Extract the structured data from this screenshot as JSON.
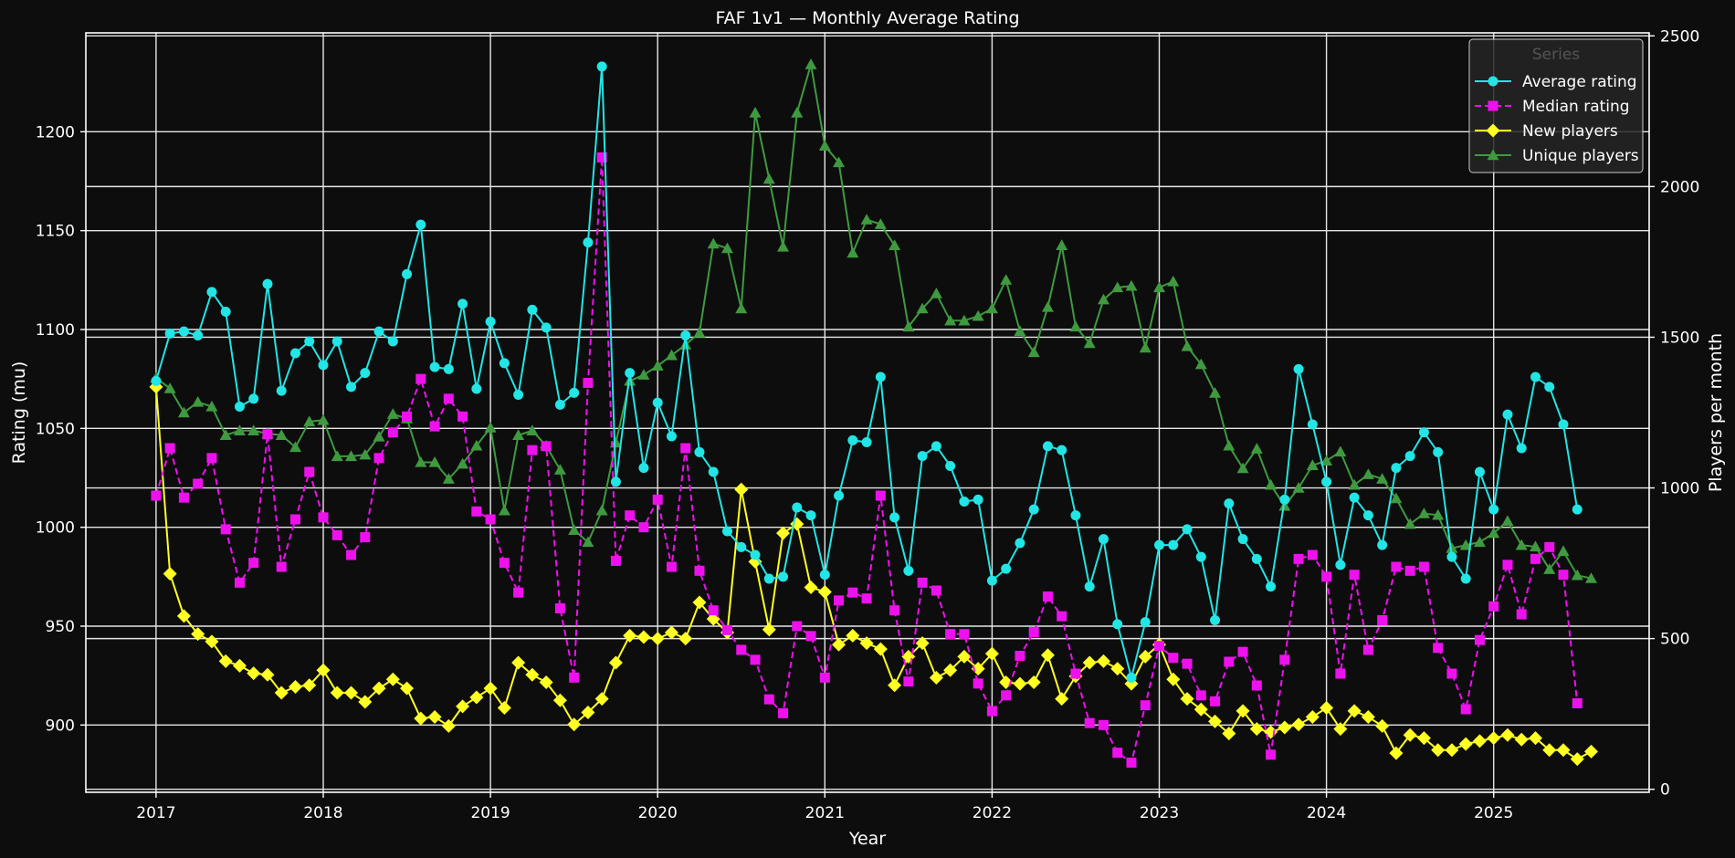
{
  "chart_data": {
    "type": "line",
    "title": "FAF 1v1 — Monthly Average Rating",
    "xlabel": "Year",
    "ylabel": "Rating (mu)",
    "y2label": "Players per month",
    "xlim": [
      2016.58,
      2025.93
    ],
    "ylim": [
      866,
      1250
    ],
    "y2lim": [
      -10,
      2510
    ],
    "x_ticks": [
      2017,
      2018,
      2019,
      2020,
      2021,
      2022,
      2023,
      2024,
      2025
    ],
    "y_ticks": [
      900,
      950,
      1000,
      1050,
      1100,
      1150,
      1200
    ],
    "y2_ticks": [
      0,
      500,
      1000,
      1500,
      2000,
      2500
    ],
    "grid": true,
    "legend": {
      "title": "Series",
      "placement": "top-right"
    },
    "x_start": "2017-01",
    "series": [
      {
        "name": "Average rating",
        "axis": "left",
        "color": "#22e5e5",
        "marker": "circle",
        "dash": "solid",
        "values": [
          1074,
          1098,
          1099,
          1097,
          1119,
          1109,
          1061,
          1065,
          1123,
          1069,
          1088,
          1094,
          1082,
          1094,
          1071,
          1078,
          1099,
          1094,
          1128,
          1153,
          1081,
          1080,
          1113,
          1070,
          1104,
          1083,
          1067,
          1110,
          1101,
          1062,
          1068,
          1144,
          1233,
          1023,
          1078,
          1030,
          1063,
          1046,
          1097,
          1038,
          1028,
          998,
          990,
          986,
          974,
          975,
          1010,
          1006,
          976,
          1016,
          1044,
          1043,
          1076,
          1005,
          978,
          1036,
          1041,
          1031,
          1013,
          1014,
          973,
          979,
          992,
          1009,
          1041,
          1039,
          1006,
          970,
          994,
          951,
          924,
          952,
          991,
          991,
          999,
          985,
          953,
          1012,
          994,
          984,
          970,
          1014,
          1080,
          1052,
          1023,
          981,
          1015,
          1006,
          991,
          1030,
          1036,
          1048,
          1038,
          985,
          974,
          1028,
          1009,
          1057,
          1040,
          1076,
          1071,
          1052,
          1009
        ]
      },
      {
        "name": "Median rating",
        "axis": "left",
        "color": "#ee11ee",
        "marker": "square",
        "dash": "dashed",
        "values": [
          1016,
          1040,
          1015,
          1022,
          1035,
          999,
          972,
          982,
          1047,
          980,
          1004,
          1028,
          1005,
          996,
          986,
          995,
          1035,
          1048,
          1056,
          1075,
          1051,
          1065,
          1056,
          1008,
          1004,
          982,
          967,
          1039,
          1041,
          959,
          924,
          1073,
          1187,
          983,
          1006,
          1000,
          1014,
          980,
          1040,
          978,
          958,
          948,
          938,
          933,
          913,
          906,
          950,
          945,
          924,
          963,
          967,
          964,
          1016,
          958,
          922,
          972,
          968,
          946,
          946,
          921,
          907,
          915,
          935,
          947,
          965,
          955,
          926,
          901,
          900,
          886,
          881,
          910,
          940,
          934,
          931,
          915,
          912,
          932,
          937,
          920,
          885,
          933,
          984,
          986,
          975,
          926,
          976,
          938,
          953,
          980,
          978,
          980,
          939,
          926,
          908,
          943,
          960,
          981,
          956,
          984,
          990,
          976,
          911
        ]
      },
      {
        "name": "New players",
        "axis": "right",
        "color": "#ffff22",
        "marker": "diamond",
        "dash": "solid",
        "values": [
          1335,
          715,
          575,
          515,
          490,
          425,
          410,
          385,
          380,
          320,
          340,
          345,
          395,
          320,
          320,
          290,
          335,
          365,
          335,
          235,
          240,
          210,
          275,
          305,
          335,
          270,
          420,
          380,
          355,
          295,
          215,
          255,
          300,
          420,
          510,
          505,
          500,
          520,
          500,
          620,
          565,
          520,
          995,
          755,
          530,
          850,
          880,
          670,
          655,
          480,
          510,
          485,
          465,
          345,
          440,
          485,
          370,
          395,
          440,
          400,
          450,
          355,
          350,
          355,
          445,
          300,
          375,
          420,
          425,
          400,
          350,
          440,
          480,
          365,
          300,
          265,
          225,
          185,
          260,
          200,
          190,
          205,
          215,
          240,
          270,
          200,
          260,
          240,
          210,
          120,
          180,
          170,
          130,
          130,
          150,
          160,
          170,
          180,
          165,
          170,
          130,
          130,
          100,
          125
        ]
      },
      {
        "name": "Unique players",
        "axis": "right",
        "color": "#3f9a3f",
        "marker": "triangle",
        "dash": "solid",
        "values": [
          1365,
          1330,
          1250,
          1285,
          1270,
          1175,
          1190,
          1190,
          1180,
          1175,
          1135,
          1220,
          1225,
          1105,
          1105,
          1110,
          1170,
          1245,
          1230,
          1085,
          1085,
          1030,
          1080,
          1140,
          1200,
          925,
          1175,
          1190,
          1140,
          1060,
          860,
          820,
          925,
          1150,
          1355,
          1375,
          1405,
          1440,
          1475,
          1515,
          1810,
          1795,
          1595,
          2245,
          2025,
          1800,
          2245,
          2405,
          2135,
          2080,
          1780,
          1890,
          1875,
          1805,
          1535,
          1595,
          1645,
          1555,
          1555,
          1570,
          1595,
          1690,
          1520,
          1450,
          1600,
          1805,
          1535,
          1480,
          1625,
          1665,
          1670,
          1465,
          1665,
          1685,
          1470,
          1410,
          1315,
          1140,
          1065,
          1130,
          1010,
          940,
          1000,
          1075,
          1090,
          1120,
          1010,
          1045,
          1030,
          965,
          880,
          915,
          910,
          800,
          810,
          820,
          850,
          890,
          810,
          805,
          730,
          790,
          710,
          700
        ]
      }
    ]
  }
}
